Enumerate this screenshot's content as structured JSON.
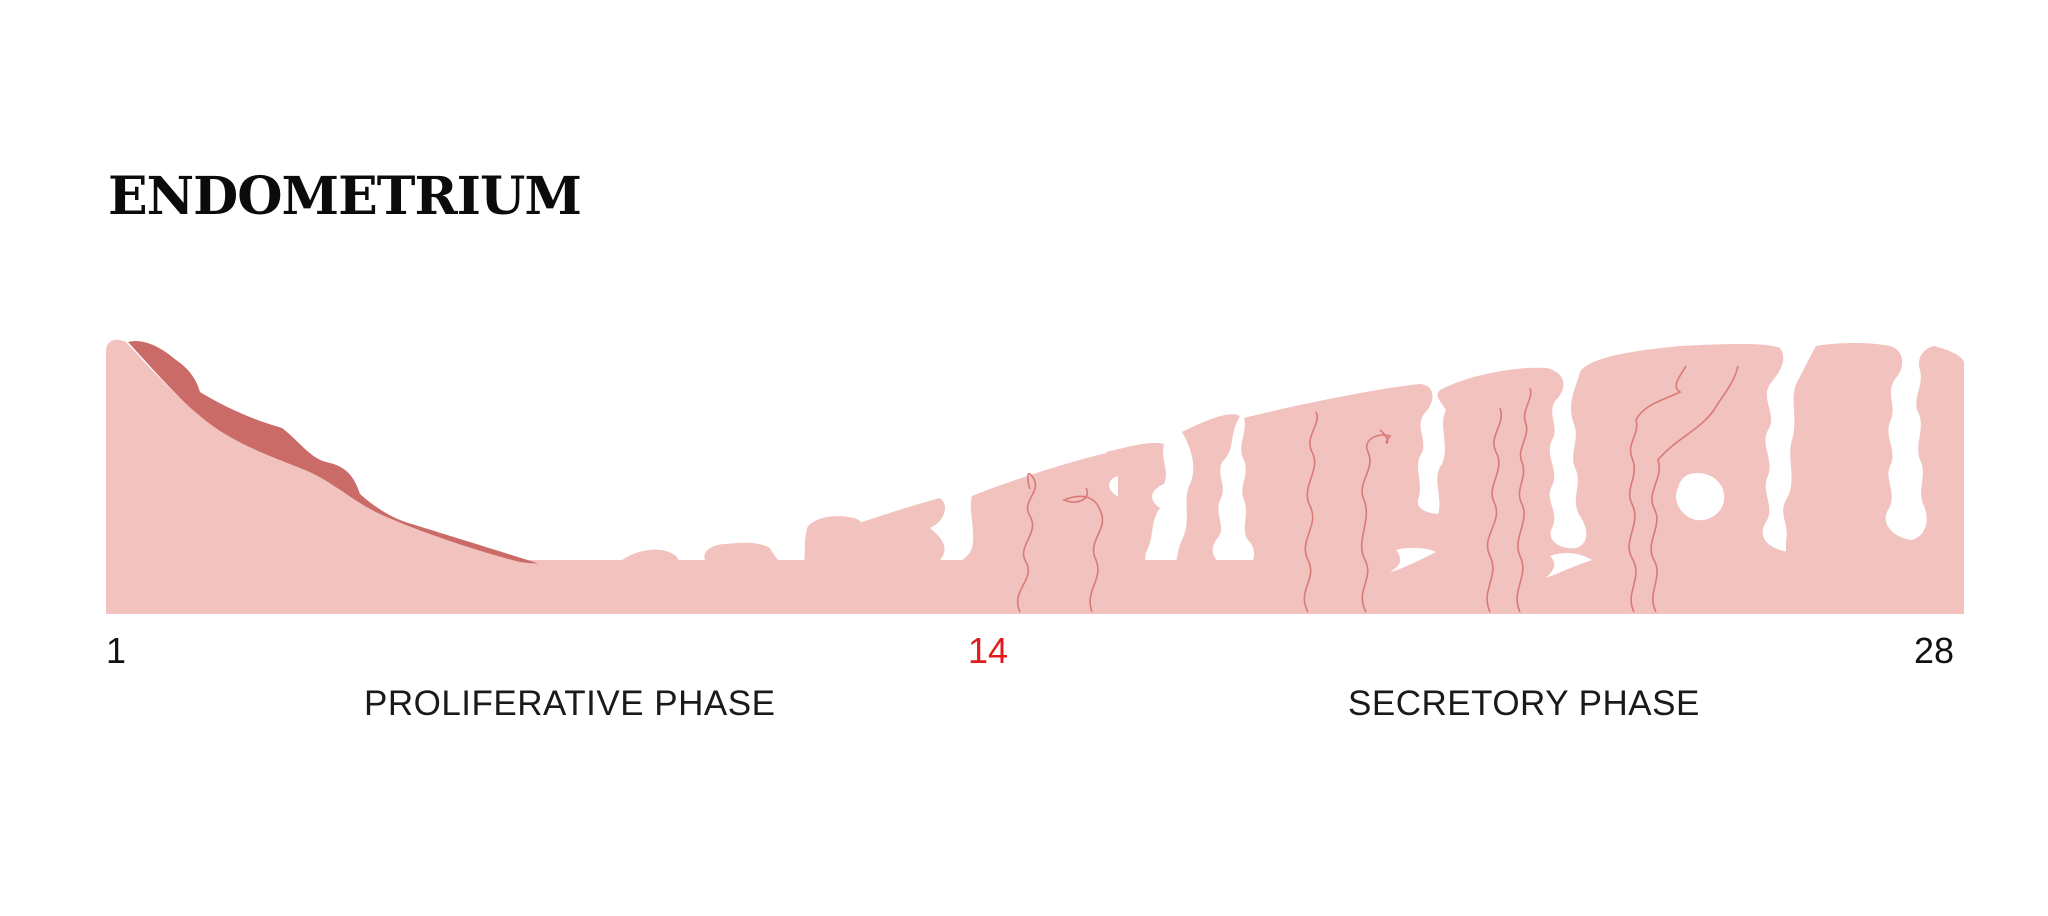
{
  "title": "ENDOMETRIUM",
  "days": {
    "start": "1",
    "ovulation": "14",
    "end": "28"
  },
  "phases": {
    "proliferative": "PROLIFERATIVE PHASE",
    "secretory": "SECRETORY PHASE"
  },
  "colors": {
    "tissue": "#f2c2bf",
    "shedding": "#cb6b68",
    "vessel": "#d97a76",
    "ovulation_day": "#e11b1b",
    "text": "#111111"
  }
}
